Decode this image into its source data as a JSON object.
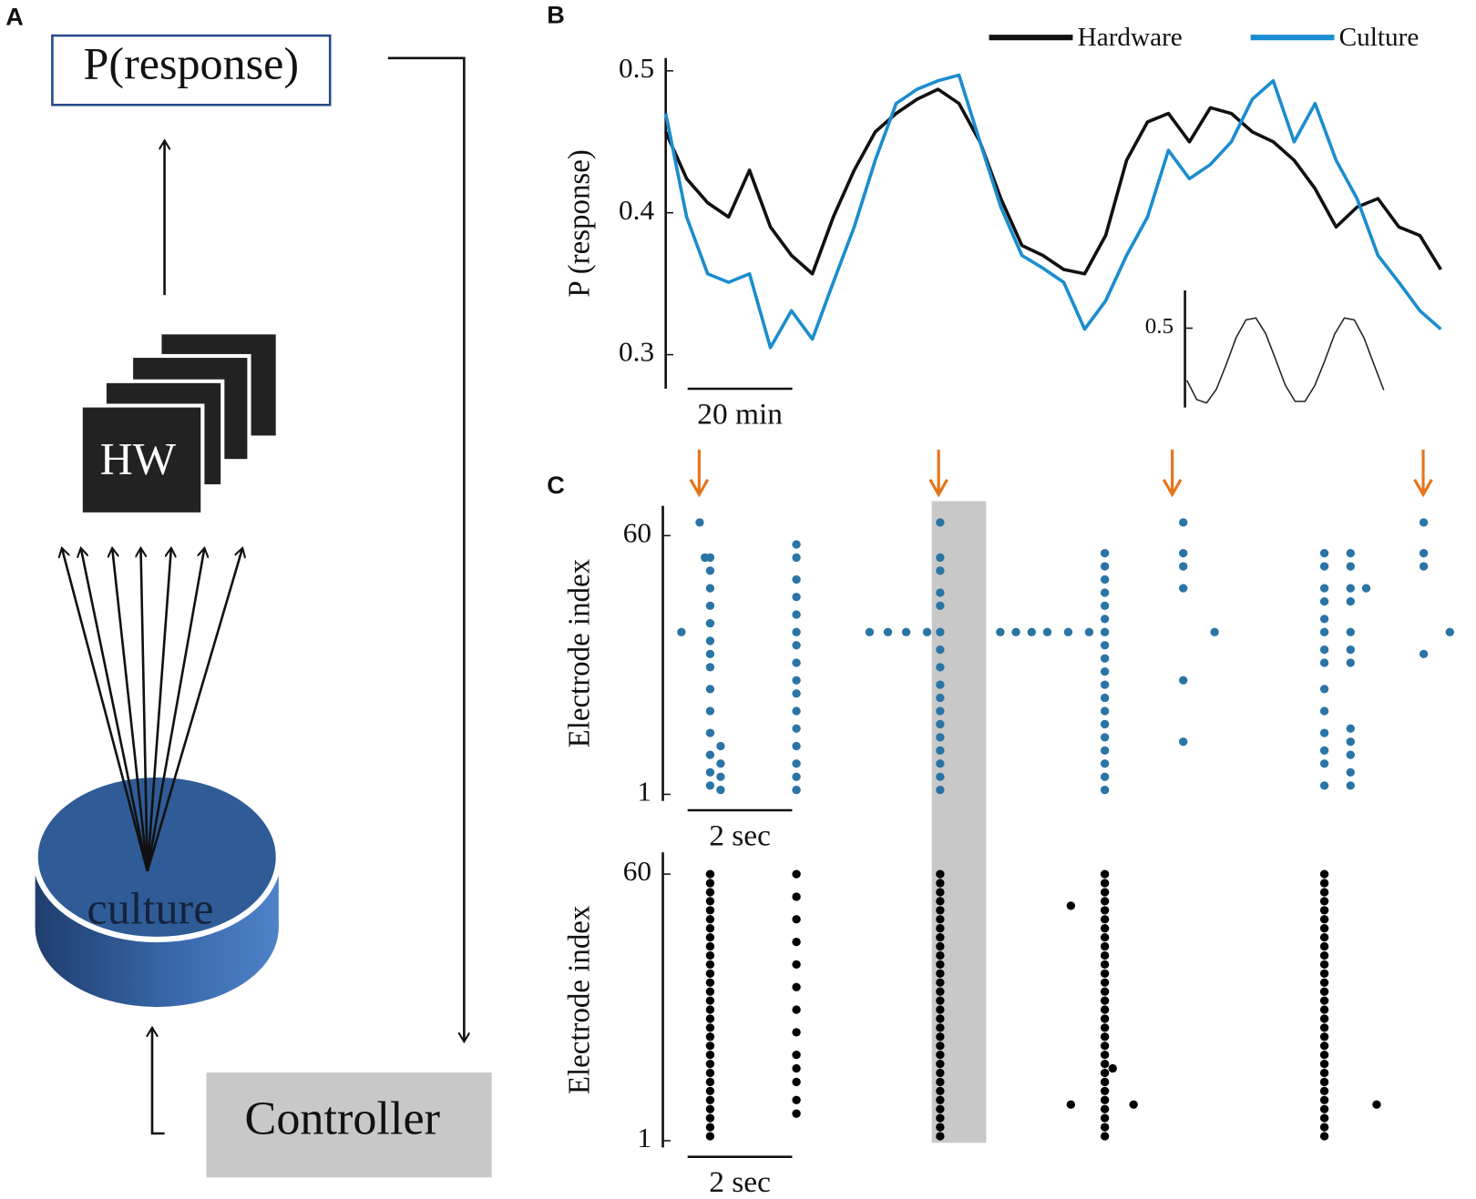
{
  "panel_labels": [
    "A",
    "B",
    "C"
  ],
  "diagram": {
    "output": "P(response)",
    "hardware": "HW",
    "culture": "culture",
    "controller": "Controller"
  },
  "chart_data": [
    {
      "type": "line",
      "ylabel": "P (response)",
      "x": [
        0,
        4,
        8,
        12,
        16,
        20,
        24,
        28,
        32,
        36,
        40,
        44,
        48,
        52,
        56,
        60,
        64,
        68,
        72,
        76,
        80,
        84,
        88,
        92,
        96,
        100,
        104,
        108,
        112,
        116,
        120,
        124,
        128,
        132,
        136,
        140,
        144,
        148
      ],
      "xlim": [
        0,
        148
      ],
      "ylim": [
        0.276,
        0.509
      ],
      "yticks": [
        0.3,
        0.4,
        0.5
      ],
      "scale_bar": {
        "length": 20,
        "label": "20 min"
      },
      "legend": "top-right",
      "series": [
        {
          "name": "Hardware",
          "color": "#111111",
          "values": [
            0.457,
            0.424,
            0.407,
            0.397,
            0.43,
            0.39,
            0.37,
            0.357,
            0.397,
            0.43,
            0.457,
            0.47,
            0.48,
            0.487,
            0.477,
            0.45,
            0.41,
            0.377,
            0.37,
            0.36,
            0.357,
            0.384,
            0.437,
            0.464,
            0.47,
            0.45,
            0.474,
            0.47,
            0.457,
            0.45,
            0.437,
            0.417,
            0.39,
            0.404,
            0.41,
            0.39,
            0.384,
            0.36
          ]
        },
        {
          "name": "Culture",
          "color": "#1b8dcf",
          "values": [
            0.47,
            0.397,
            0.357,
            0.351,
            0.357,
            0.305,
            0.331,
            0.311,
            0.351,
            0.39,
            0.437,
            0.477,
            0.487,
            0.493,
            0.497,
            0.45,
            0.404,
            0.37,
            0.361,
            0.351,
            0.318,
            0.338,
            0.37,
            0.397,
            0.444,
            0.424,
            0.434,
            0.45,
            0.48,
            0.493,
            0.45,
            0.477,
            0.437,
            0.41,
            0.37,
            0.351,
            0.331,
            0.318
          ]
        }
      ]
    },
    {
      "type": "line",
      "x": [
        0,
        1,
        2,
        3,
        4,
        5,
        6,
        7,
        8,
        9,
        10,
        11,
        12,
        13,
        14,
        15,
        16,
        17,
        18,
        19,
        20
      ],
      "xlim": [
        0,
        20
      ],
      "ylim": [
        0.29,
        0.6
      ],
      "yticks": [
        0.5
      ],
      "series": [
        {
          "color": "#222222",
          "values": [
            0.362,
            0.311,
            0.302,
            0.338,
            0.404,
            0.475,
            0.522,
            0.527,
            0.486,
            0.418,
            0.349,
            0.306,
            0.306,
            0.348,
            0.413,
            0.484,
            0.527,
            0.522,
            0.474,
            0.404,
            0.336
          ]
        }
      ]
    },
    {
      "type": "raster",
      "ylabel": "Electrode index",
      "xlim": [
        0,
        15.1
      ],
      "ylim": [
        -0.5,
        66.8
      ],
      "yticks": [
        1,
        60
      ],
      "color": "#2a74a6",
      "stimulus_color": "#e8731a",
      "stimuli": [
        0.64,
        5.22,
        9.69,
        14.49
      ],
      "shaded_span": [
        5.09,
        6.13
      ],
      "scale_bar": {
        "length": 2,
        "label": "2 sec"
      },
      "spikes": [
        {
          "t": 0.3,
          "electrodes": [
            38
          ]
        },
        {
          "t": 0.65,
          "electrodes": [
            63
          ]
        },
        {
          "t": 0.75,
          "electrodes": [
            55
          ]
        },
        {
          "t": 0.85,
          "electrodes": [
            55,
            52,
            48,
            44,
            40,
            36,
            33,
            30,
            25,
            20,
            15,
            10,
            6,
            3
          ]
        },
        {
          "t": 1.05,
          "electrodes": [
            12,
            8,
            5,
            2
          ]
        },
        {
          "t": 2.5,
          "electrodes": [
            58,
            55,
            50,
            46,
            42,
            38,
            35,
            31,
            27,
            24,
            20,
            16,
            12,
            8,
            5,
            2
          ]
        },
        {
          "t": 3.9,
          "electrodes": [
            38
          ]
        },
        {
          "t": 4.25,
          "electrodes": [
            38
          ]
        },
        {
          "t": 4.6,
          "electrodes": [
            38
          ]
        },
        {
          "t": 5.0,
          "electrodes": [
            38
          ]
        },
        {
          "t": 5.25,
          "electrodes": [
            63,
            55,
            52,
            47,
            44,
            38,
            34,
            30,
            26,
            23,
            20,
            17,
            14,
            11,
            8,
            5,
            2
          ]
        },
        {
          "t": 6.4,
          "electrodes": [
            38
          ]
        },
        {
          "t": 6.7,
          "electrodes": [
            38
          ]
        },
        {
          "t": 7.0,
          "electrodes": [
            38
          ]
        },
        {
          "t": 7.3,
          "electrodes": [
            38
          ]
        },
        {
          "t": 7.7,
          "electrodes": [
            38
          ]
        },
        {
          "t": 8.1,
          "electrodes": [
            38
          ]
        },
        {
          "t": 8.4,
          "electrodes": [
            56,
            53,
            50,
            47,
            44,
            41,
            38,
            35,
            32,
            29,
            26,
            23,
            20,
            17,
            14,
            11,
            8,
            5,
            2
          ]
        },
        {
          "t": 9.9,
          "electrodes": [
            63,
            56,
            53,
            48,
            27,
            13
          ]
        },
        {
          "t": 10.5,
          "electrodes": [
            38
          ]
        },
        {
          "t": 12.6,
          "electrodes": [
            56,
            53,
            48,
            45,
            41,
            38,
            34,
            31,
            25,
            20,
            15,
            11,
            8,
            3
          ]
        },
        {
          "t": 13.1,
          "electrodes": [
            56,
            53,
            48,
            45,
            38,
            34,
            31,
            16,
            13,
            10,
            6,
            3
          ]
        },
        {
          "t": 13.4,
          "electrodes": [
            48
          ]
        },
        {
          "t": 14.5,
          "electrodes": [
            63,
            56,
            53,
            33
          ]
        },
        {
          "t": 15.0,
          "electrodes": [
            38
          ]
        }
      ]
    },
    {
      "type": "raster",
      "ylabel": "Electrode index",
      "xlim": [
        0,
        15.1
      ],
      "ylim": [
        -0.5,
        64.8
      ],
      "yticks": [
        1,
        60
      ],
      "color": "#000000",
      "scale_bar": {
        "length": 2,
        "label": "2 sec"
      },
      "spikes": [
        {
          "t": 0.85,
          "electrodes": [
            2,
            4,
            6,
            8,
            10,
            12,
            14,
            16,
            18,
            20,
            22,
            24,
            26,
            28,
            30,
            32,
            34,
            36,
            38,
            40,
            42,
            44,
            46,
            48,
            50,
            52,
            54,
            56,
            58,
            60
          ]
        },
        {
          "t": 2.5,
          "electrodes": [
            60,
            55,
            50,
            45,
            40,
            35,
            30,
            25,
            20,
            17,
            14,
            10,
            7
          ]
        },
        {
          "t": 5.25,
          "electrodes": [
            2,
            4,
            6,
            8,
            10,
            12,
            14,
            16,
            18,
            20,
            22,
            24,
            26,
            28,
            30,
            32,
            34,
            36,
            38,
            40,
            42,
            44,
            46,
            48,
            50,
            52,
            54,
            56,
            58,
            60
          ]
        },
        {
          "t": 7.75,
          "electrodes": [
            53,
            9
          ]
        },
        {
          "t": 8.4,
          "electrodes": [
            2,
            4,
            6,
            8,
            10,
            12,
            14,
            16,
            18,
            20,
            22,
            24,
            26,
            28,
            30,
            32,
            34,
            36,
            38,
            40,
            42,
            44,
            46,
            48,
            50,
            52,
            54,
            56,
            58,
            60
          ]
        },
        {
          "t": 8.55,
          "electrodes": [
            17
          ]
        },
        {
          "t": 8.95,
          "electrodes": [
            9
          ]
        },
        {
          "t": 12.6,
          "electrodes": [
            2,
            4,
            6,
            8,
            10,
            12,
            14,
            16,
            18,
            20,
            22,
            24,
            26,
            28,
            30,
            32,
            34,
            36,
            38,
            40,
            42,
            44,
            46,
            48,
            50,
            52,
            54,
            56,
            58,
            60
          ]
        },
        {
          "t": 13.6,
          "electrodes": [
            9
          ]
        }
      ]
    }
  ]
}
